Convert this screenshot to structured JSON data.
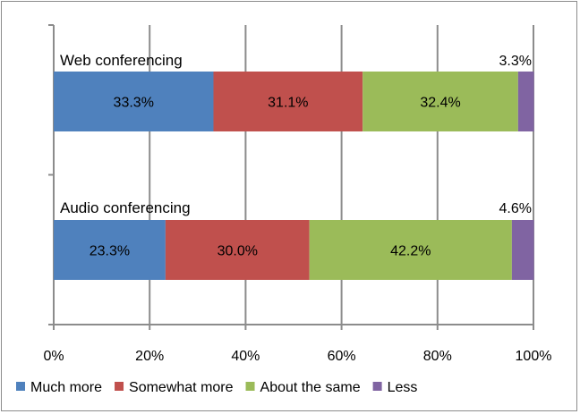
{
  "chart_data": {
    "type": "bar",
    "orientation": "horizontal",
    "stacked": "percent",
    "categories": [
      "Web conferencing",
      "Audio conferencing"
    ],
    "series": [
      {
        "name": "Much more",
        "color": "#4f81bd",
        "values": [
          33.3,
          23.3
        ],
        "labels": [
          "33.3%",
          "23.3%"
        ]
      },
      {
        "name": "Somewhat more",
        "color": "#c0504d",
        "values": [
          31.1,
          30.0
        ],
        "labels": [
          "31.1%",
          "30.0%"
        ]
      },
      {
        "name": "About the same",
        "color": "#9bbb59",
        "values": [
          32.4,
          42.2
        ],
        "labels": [
          "32.4%",
          "42.2%"
        ]
      },
      {
        "name": "Less",
        "color": "#8064a2",
        "values": [
          3.3,
          4.6
        ],
        "labels": [
          "3.3%",
          "4.6%"
        ]
      }
    ],
    "x_ticks": [
      "0%",
      "20%",
      "40%",
      "60%",
      "80%",
      "100%"
    ],
    "xlim": [
      0,
      100
    ],
    "grid": true,
    "legend": "bottom"
  }
}
